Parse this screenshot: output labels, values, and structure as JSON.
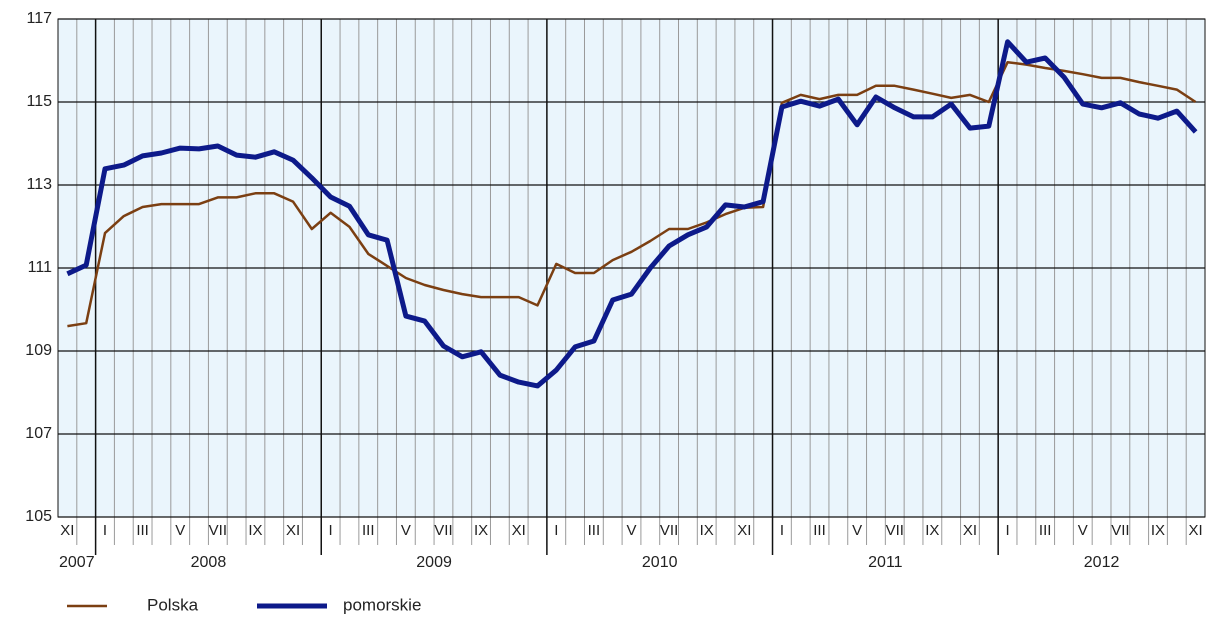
{
  "chart_data": {
    "type": "line",
    "x": [
      "2007-11",
      "2007-12",
      "2008-01",
      "2008-02",
      "2008-03",
      "2008-04",
      "2008-05",
      "2008-06",
      "2008-07",
      "2008-08",
      "2008-09",
      "2008-10",
      "2008-11",
      "2008-12",
      "2009-01",
      "2009-02",
      "2009-03",
      "2009-04",
      "2009-05",
      "2009-06",
      "2009-07",
      "2009-08",
      "2009-09",
      "2009-10",
      "2009-11",
      "2009-12",
      "2010-01",
      "2010-02",
      "2010-03",
      "2010-04",
      "2010-05",
      "2010-06",
      "2010-07",
      "2010-08",
      "2010-09",
      "2010-10",
      "2010-11",
      "2010-12",
      "2011-01",
      "2011-02",
      "2011-03",
      "2011-04",
      "2011-05",
      "2011-06",
      "2011-07",
      "2011-08",
      "2011-09",
      "2011-10",
      "2011-11",
      "2011-12",
      "2012-01",
      "2012-02",
      "2012-03",
      "2012-04",
      "2012-05",
      "2012-06",
      "2012-07",
      "2012-08",
      "2012-09",
      "2012-10",
      "2012-11"
    ],
    "categories": [
      "XI",
      null,
      "I",
      null,
      "III",
      null,
      "V",
      null,
      "VII",
      null,
      "IX",
      null,
      "XI",
      null,
      "I",
      null,
      "III",
      null,
      "V",
      null,
      "VII",
      null,
      "IX",
      null,
      "XI",
      null,
      "I",
      null,
      "III",
      null,
      "V",
      null,
      "VII",
      null,
      "IX",
      null,
      "XI",
      null,
      "I",
      null,
      "III",
      null,
      "V",
      null,
      "VII",
      null,
      "IX",
      null,
      "XI",
      null,
      "I",
      null,
      "III",
      null,
      "V",
      null,
      "VII",
      null,
      "IX",
      null,
      "XI"
    ],
    "years": [
      "2007",
      "2008",
      "2009",
      "2010",
      "2011",
      "2012"
    ],
    "series": [
      {
        "name": "Polska",
        "color": "#7b3f12",
        "width": 2.5,
        "values": [
          109.6,
          109.67,
          111.84,
          112.25,
          112.47,
          112.54,
          112.54,
          112.54,
          112.7,
          112.7,
          112.8,
          112.8,
          112.6,
          111.94,
          112.33,
          111.99,
          111.34,
          111.05,
          110.76,
          110.59,
          110.47,
          110.37,
          110.3,
          110.3,
          110.3,
          110.1,
          111.1,
          110.88,
          110.88,
          111.19,
          111.39,
          111.65,
          111.94,
          111.94,
          112.1,
          112.3,
          112.45,
          112.47,
          114.98,
          115.17,
          115.07,
          115.17,
          115.17,
          115.39,
          115.39,
          115.3,
          115.2,
          115.1,
          115.17,
          115.0,
          115.96,
          115.9,
          115.82,
          115.75,
          115.67,
          115.58,
          115.58,
          115.48,
          115.39,
          115.3,
          115.0
        ]
      },
      {
        "name": "pomorskie",
        "color": "#0d1a8a",
        "width": 5,
        "values": [
          110.86,
          111.07,
          113.39,
          113.48,
          113.7,
          113.77,
          113.89,
          113.87,
          113.94,
          113.72,
          113.67,
          113.8,
          113.6,
          113.17,
          112.71,
          112.49,
          111.8,
          111.67,
          109.84,
          109.72,
          109.12,
          108.86,
          108.98,
          108.42,
          108.25,
          108.16,
          108.54,
          109.1,
          109.24,
          110.23,
          110.37,
          111.0,
          111.53,
          111.8,
          111.99,
          112.52,
          112.47,
          112.6,
          114.88,
          115.02,
          114.9,
          115.07,
          114.45,
          115.12,
          114.86,
          114.64,
          114.64,
          114.95,
          114.37,
          114.42,
          116.45,
          115.96,
          116.06,
          115.6,
          114.95,
          114.86,
          114.98,
          114.71,
          114.61,
          114.78,
          114.28
        ]
      }
    ],
    "ylim": [
      105,
      117
    ],
    "yticks": [
      105,
      107,
      109,
      111,
      113,
      115,
      117
    ],
    "grid": true
  }
}
